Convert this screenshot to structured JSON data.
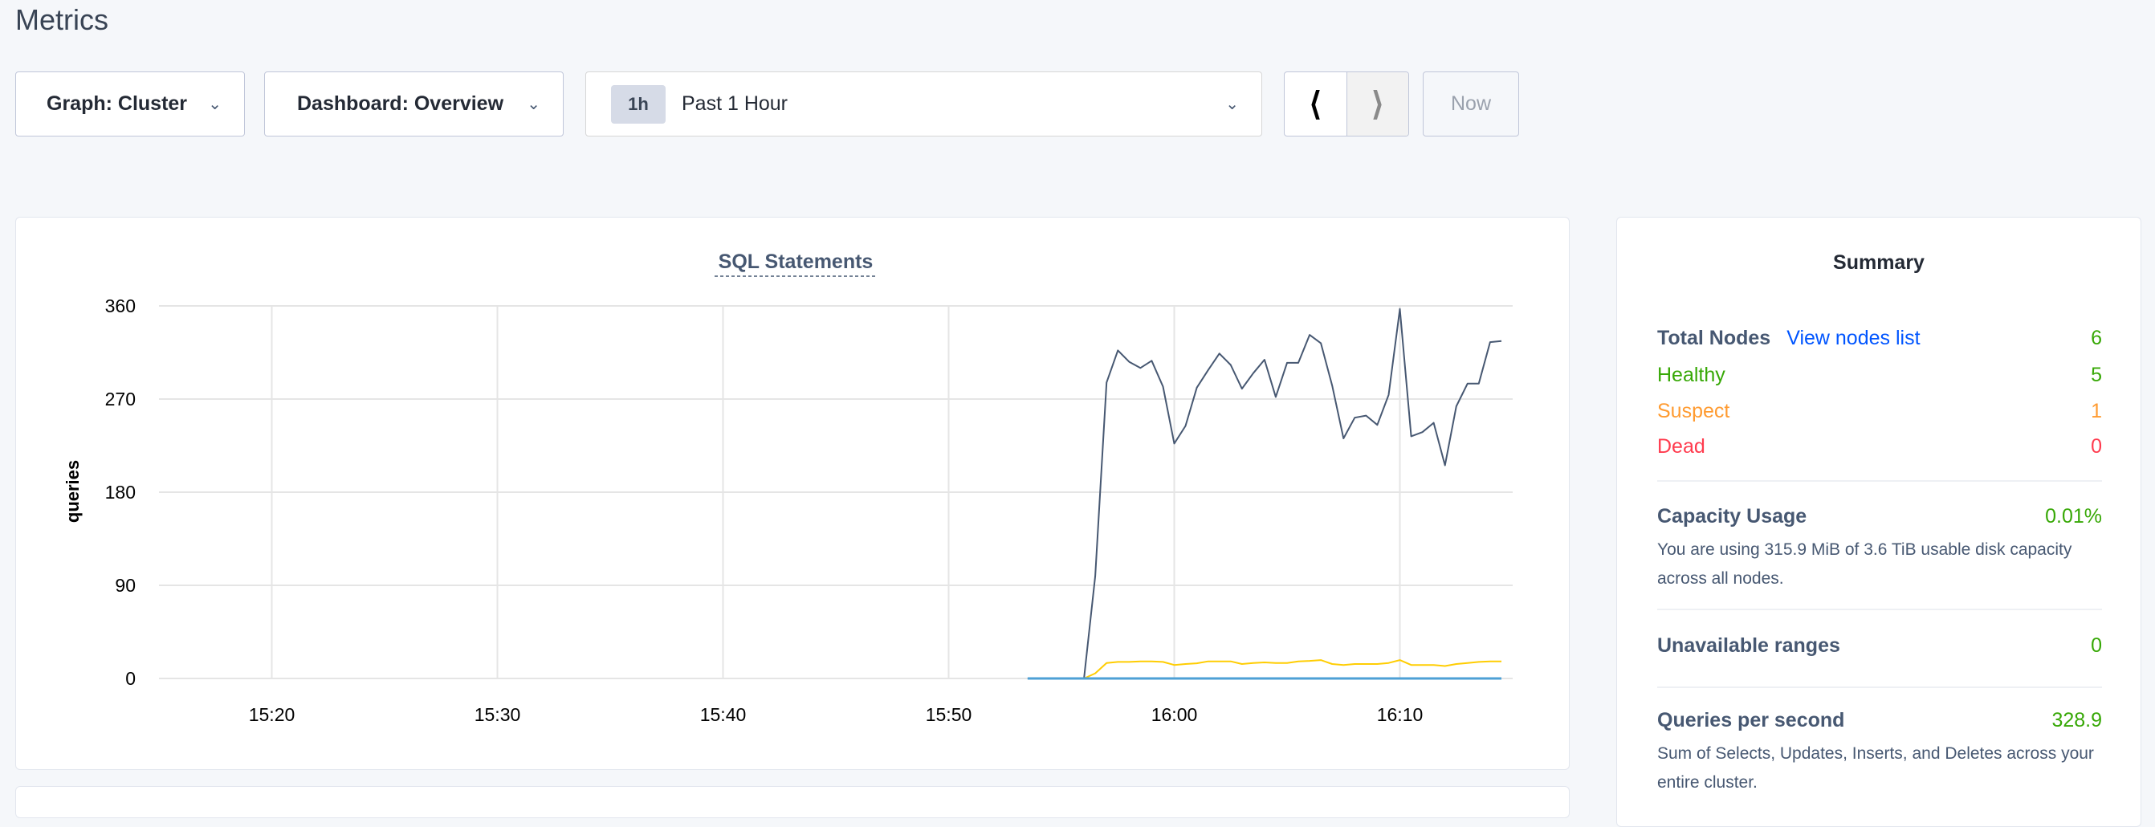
{
  "page_title": "Metrics",
  "controls": {
    "graph": "Graph: Cluster",
    "dashboard": "Dashboard: Overview",
    "time_badge": "1h",
    "time_range": "Past 1 Hour",
    "prev_icon": "chevron-left-icon",
    "next_icon": "chevron-right-icon",
    "now": "Now"
  },
  "chart_data": {
    "type": "line",
    "title": "SQL Statements",
    "ylabel": "queries",
    "xlabel": "",
    "ylim": [
      0,
      360
    ],
    "yticks": [
      "0",
      "90",
      "180",
      "270",
      "360"
    ],
    "xlim": [
      "15:15:00",
      "16:15:00"
    ],
    "xticks": [
      "15:20",
      "15:30",
      "15:40",
      "15:50",
      "16:00",
      "16:10"
    ],
    "grid": true,
    "series": [
      {
        "color": "#4ea0d5",
        "start": "15:53:30",
        "step_seconds": 30,
        "values": [
          0,
          0,
          0,
          0,
          0,
          0,
          0,
          0,
          0,
          0,
          0,
          0,
          0,
          0,
          0,
          0,
          0,
          0,
          0,
          0,
          0,
          0,
          0,
          0,
          0,
          0,
          0,
          0,
          0,
          0,
          0,
          0,
          0,
          0,
          0,
          0,
          0,
          0,
          0,
          0,
          0,
          0,
          0
        ]
      },
      {
        "color": "#475872",
        "start": "15:53:30",
        "step_seconds": 30,
        "values": [
          0,
          0,
          0,
          0,
          0,
          0,
          99,
          286,
          317,
          306,
          300,
          307,
          282,
          227,
          244,
          281,
          298,
          314,
          303,
          280,
          295,
          308,
          272,
          305,
          305,
          332,
          324,
          283,
          232,
          252,
          254,
          245,
          274,
          357,
          234,
          238,
          247,
          206,
          263,
          285,
          285,
          325,
          326
        ]
      },
      {
        "color": "#ffcd02",
        "start": "15:56:00",
        "step_seconds": 30,
        "values": [
          0,
          5,
          15,
          16,
          16,
          16.5,
          16.5,
          16,
          13,
          14,
          14.7,
          16.5,
          16.5,
          16.5,
          14,
          15,
          15.5,
          15,
          15,
          16.5,
          17,
          17.8,
          14,
          13,
          14,
          14,
          14,
          15,
          17.8,
          13,
          13,
          13,
          12,
          14,
          15,
          16,
          16.5,
          16.5
        ]
      }
    ]
  },
  "summary": {
    "title": "Summary",
    "total_nodes_label": "Total Nodes",
    "view_nodes_link": "View nodes list",
    "total_nodes": "6",
    "healthy_label": "Healthy",
    "healthy": "5",
    "suspect_label": "Suspect",
    "suspect": "1",
    "dead_label": "Dead",
    "dead": "0",
    "capacity_label": "Capacity Usage",
    "capacity": "0.01%",
    "capacity_desc": "You are using 315.9 MiB of 3.6 TiB usable disk capacity across all nodes.",
    "unavailable_label": "Unavailable ranges",
    "unavailable": "0",
    "qps_label": "Queries per second",
    "qps": "328.9",
    "qps_desc": "Sum of Selects, Updates, Inserts, and Deletes across your entire cluster."
  }
}
